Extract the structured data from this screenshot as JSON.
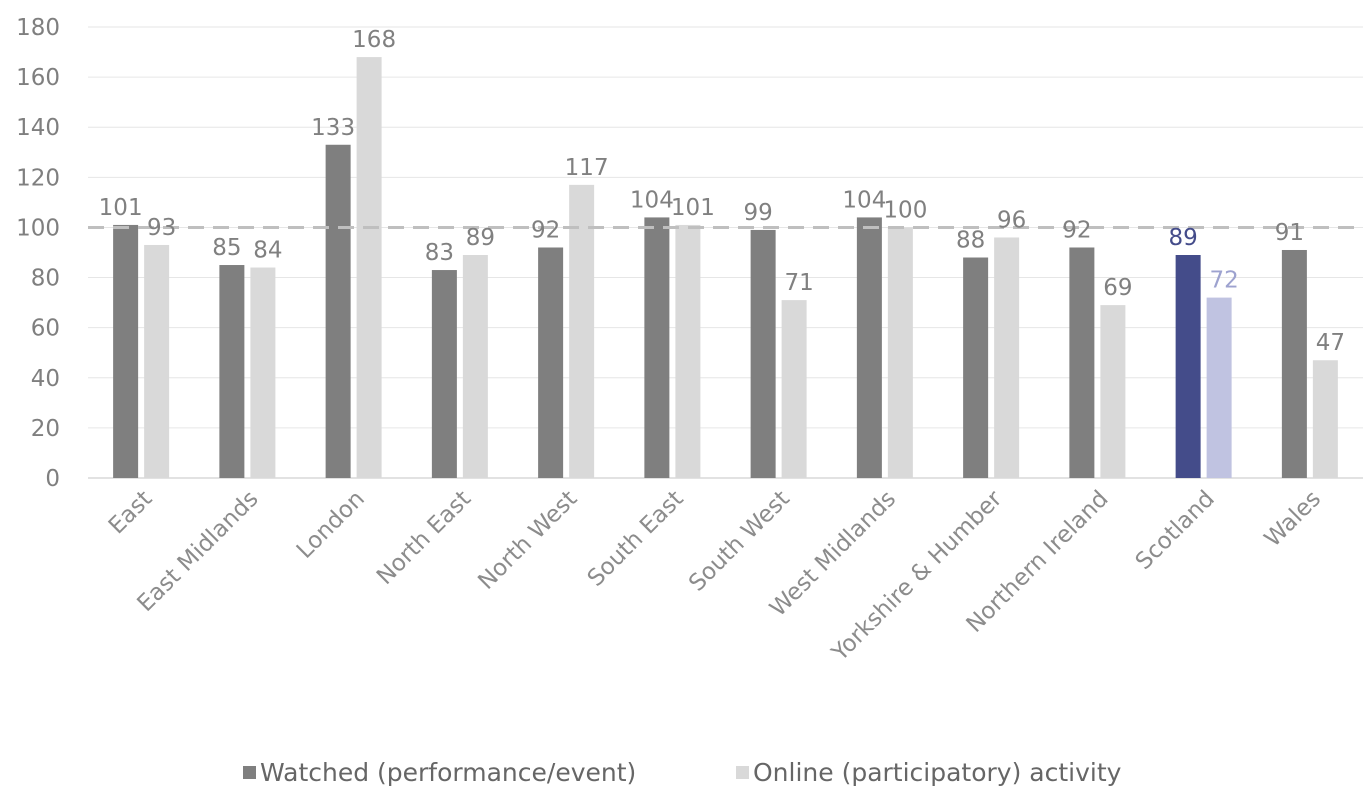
{
  "chart_data": {
    "type": "bar",
    "categories": [
      "East",
      "East Midlands",
      "London",
      "North East",
      "North West",
      "South East",
      "South West",
      "West Midlands",
      "Yorkshire & Humber",
      "Northern Ireland",
      "Scotland",
      "Wales"
    ],
    "series": [
      {
        "name": "Watched (performance/event)",
        "values": [
          101,
          85,
          133,
          83,
          92,
          104,
          99,
          104,
          88,
          92,
          89,
          91
        ],
        "color": "#7f7f7f"
      },
      {
        "name": "Online (participatory) activity",
        "values": [
          93,
          84,
          168,
          89,
          117,
          101,
          71,
          100,
          96,
          69,
          72,
          47
        ],
        "color": "#d9d9d9"
      }
    ],
    "highlight": {
      "category": "Scotland",
      "colors": [
        "#444c8a",
        "#c0c3e1"
      ],
      "label_colors": [
        "#444c8a",
        "#9da2cf"
      ]
    },
    "ylim": [
      0,
      180
    ],
    "yticks": [
      0,
      20,
      40,
      60,
      80,
      100,
      120,
      140,
      160,
      180
    ],
    "reference_line": 100,
    "reference_line_color": "#bfbfbf",
    "label_color": "#808080",
    "grid": true,
    "legend_position": "bottom",
    "title": "",
    "xlabel": "",
    "ylabel": ""
  }
}
